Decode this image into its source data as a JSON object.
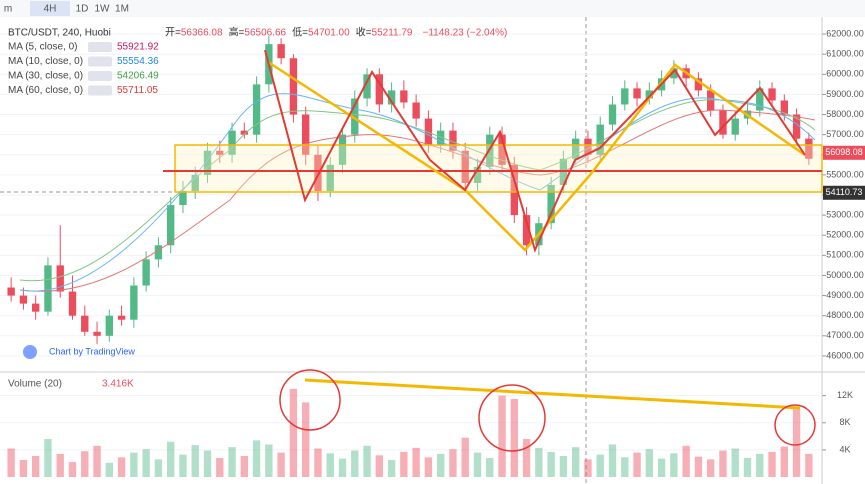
{
  "toolbar": [
    "m",
    "4H",
    "1D",
    "1W",
    "1M"
  ],
  "chart_data": {
    "type": "candlestick",
    "title": "BTC/USDT, 240, Huobi",
    "ohlc_legend": [
      {
        "label": "开=",
        "value": "56366.08"
      },
      {
        "label": "高=",
        "value": "56506.66"
      },
      {
        "label": "低=",
        "value": "54701.00"
      },
      {
        "label": "收=",
        "value": "55211.79"
      }
    ],
    "change": "−1148.23 (−2.04%)",
    "ma_legend": [
      {
        "name": "MA (5, close, 0)",
        "value": "55921.92",
        "color": "#c2185b"
      },
      {
        "name": "MA (10, close, 0)",
        "value": "55554.36",
        "color": "#1e88e5"
      },
      {
        "name": "MA (30, close, 0)",
        "value": "54206.49",
        "color": "#43a047"
      },
      {
        "name": "MA (60, close, 0)",
        "value": "55711.05",
        "color": "#e53935"
      }
    ],
    "credit": "Chart by TradingView",
    "up_color": "#53b987",
    "down_color": "#eb4d5c",
    "open": [
      49400,
      49000,
      48600,
      48200,
      50500,
      49200,
      48000,
      47200,
      47000,
      48000,
      47800,
      49500,
      50800,
      51500,
      53500,
      54200,
      55000,
      56200,
      56000,
      57200,
      57000,
      59500,
      61500,
      60800,
      58000,
      56000,
      54200,
      55500,
      57000,
      58800,
      60000,
      58500,
      59200,
      58600,
      57800,
      56500,
      57200,
      56200,
      54600,
      55400,
      57000,
      55500,
      53000,
      51500,
      52600,
      54500,
      55800,
      56800,
      56000,
      57500,
      58500,
      59300,
      58800,
      59200,
      59800,
      60300,
      59800,
      59200,
      58200,
      57000,
      57800,
      58200,
      59300,
      58700,
      58000,
      56800
    ],
    "high": [
      49900,
      49400,
      49000,
      50900,
      52500,
      50000,
      48500,
      47700,
      48300,
      48500,
      49900,
      51200,
      51900,
      53900,
      54700,
      55400,
      56600,
      56700,
      57600,
      57600,
      59900,
      61900,
      61800,
      61000,
      58400,
      56500,
      55900,
      57400,
      59200,
      60300,
      60300,
      59600,
      59700,
      59000,
      58200,
      57600,
      57600,
      56600,
      55800,
      57400,
      57400,
      55900,
      53400,
      52900,
      54900,
      56200,
      57200,
      57200,
      57900,
      58900,
      59700,
      59600,
      59600,
      60200,
      60700,
      60500,
      60100,
      59500,
      58500,
      58200,
      58600,
      59700,
      59600,
      59000,
      58300,
      57100
    ],
    "low": [
      48700,
      48300,
      47800,
      48000,
      48900,
      47800,
      47000,
      46600,
      46700,
      47500,
      47400,
      49200,
      50400,
      51100,
      53100,
      53800,
      54600,
      55600,
      55600,
      56800,
      56600,
      59100,
      60500,
      57600,
      55500,
      53700,
      53900,
      55100,
      56600,
      58400,
      58100,
      58100,
      58300,
      57400,
      56100,
      56100,
      55800,
      54200,
      54200,
      55000,
      55100,
      52600,
      51000,
      51000,
      52300,
      54100,
      55500,
      55600,
      55700,
      57200,
      58200,
      58400,
      58500,
      58900,
      59500,
      59400,
      58900,
      57900,
      56800,
      56700,
      57500,
      57900,
      58400,
      57700,
      56500,
      55500
    ],
    "close": [
      49000,
      48600,
      48200,
      50500,
      49200,
      48000,
      47200,
      47000,
      48000,
      47800,
      49500,
      50800,
      51500,
      53500,
      54200,
      55000,
      56200,
      56000,
      57200,
      57000,
      59500,
      61500,
      60800,
      58000,
      56000,
      54200,
      55500,
      57000,
      58800,
      60000,
      58500,
      59200,
      58600,
      57800,
      56500,
      57200,
      56200,
      54600,
      55400,
      57000,
      55500,
      53000,
      51500,
      52600,
      54500,
      55800,
      56800,
      56000,
      57500,
      58500,
      59300,
      58800,
      59200,
      59800,
      60300,
      59800,
      59200,
      58200,
      57000,
      57800,
      58200,
      59300,
      58700,
      58000,
      56800,
      55800
    ],
    "ylim": [
      45300,
      62700
    ],
    "yticks": [
      {
        "value": 46000,
        "label": "46000.00"
      },
      {
        "value": 47000,
        "label": "47000.00"
      },
      {
        "value": 48000,
        "label": "48000.00"
      },
      {
        "value": 49000,
        "label": "49000.00"
      },
      {
        "value": 50000,
        "label": "50000.00"
      },
      {
        "value": 51000,
        "label": "51000.00"
      },
      {
        "value": 52000,
        "label": "52000.00"
      },
      {
        "value": 53000,
        "label": "53000.00"
      },
      {
        "value": 54000,
        "label": "54000.00"
      },
      {
        "value": 55000,
        "label": "55000.00"
      },
      {
        "value": 56000,
        "label": "56000.00"
      },
      {
        "value": 57000,
        "label": "57000.00"
      },
      {
        "value": 58000,
        "label": "58000.00"
      },
      {
        "value": 59000,
        "label": "59000.00"
      },
      {
        "value": 60000,
        "label": "60000.00"
      },
      {
        "value": 61000,
        "label": "61000.00"
      },
      {
        "value": 62000,
        "label": "62000.00"
      }
    ],
    "price_labels": [
      {
        "value": 56098.08,
        "label": "56098.08",
        "color": "#eb4d5c"
      },
      {
        "value": 54110.73,
        "label": "54110.73",
        "color": "#333333"
      }
    ],
    "volume": {
      "title": "Volume (20)",
      "value_label": "3.416K",
      "values": [
        4200,
        2500,
        3100,
        5600,
        3400,
        2200,
        3800,
        4600,
        2100,
        2900,
        3600,
        4100,
        2600,
        5200,
        3300,
        4700,
        3900,
        2800,
        4400,
        3100,
        5400,
        4800,
        3600,
        13000,
        11000,
        4200,
        3500,
        2700,
        3900,
        4600,
        3200,
        2500,
        3700,
        4300,
        2900,
        3400,
        4100,
        5800,
        3600,
        2800,
        12000,
        11500,
        5600,
        4300,
        3700,
        3100,
        4400,
        2600,
        3300,
        4800,
        2900,
        3600,
        4100,
        2700,
        3500,
        4600,
        3000,
        2600,
        3900,
        4200,
        2800,
        3400,
        3700,
        4500,
        10000,
        3416
      ],
      "ylim": [
        0,
        14600
      ],
      "yticks": [
        {
          "value": 4000,
          "label": "4K"
        },
        {
          "value": 8000,
          "label": "8K"
        },
        {
          "value": 12000,
          "label": "12K"
        }
      ]
    }
  }
}
